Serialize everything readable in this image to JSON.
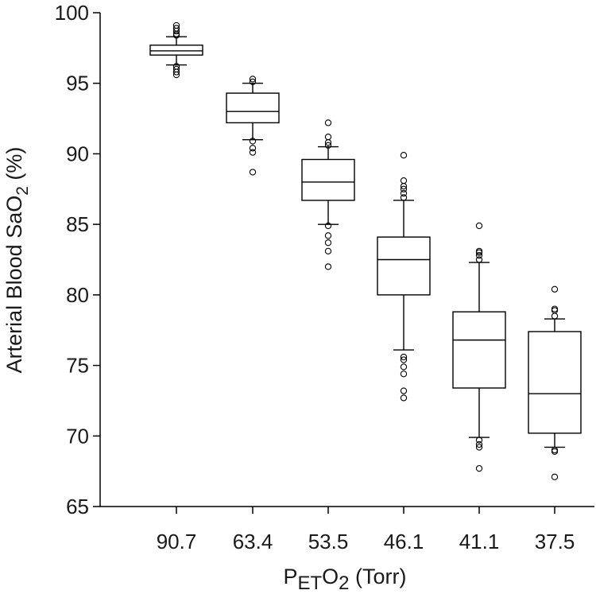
{
  "chart_data": {
    "type": "box",
    "ylabel_prefix": "Arterial Blood SaO",
    "ylabel_sub": "2",
    "ylabel_suffix": " (%)",
    "xlabel_p": "P",
    "xlabel_sub1": "ET",
    "xlabel_o": "O",
    "xlabel_sub2": "2",
    "xlabel_suffix": " (Torr)",
    "ylim": [
      65,
      100
    ],
    "yticks": [
      65,
      70,
      75,
      80,
      85,
      90,
      95,
      100
    ],
    "categories": [
      "90.7",
      "63.4",
      "53.5",
      "46.1",
      "41.1",
      "37.5"
    ],
    "boxes": [
      {
        "q1": 97.0,
        "median": 97.3,
        "q3": 97.7,
        "whisker_low": 96.3,
        "whisker_high": 98.3,
        "outliers": [
          95.6,
          95.8,
          96.0,
          96.2,
          98.4,
          98.5,
          98.7,
          98.9,
          99.1
        ]
      },
      {
        "q1": 92.2,
        "median": 93.0,
        "q3": 94.3,
        "whisker_low": 91.0,
        "whisker_high": 95.0,
        "outliers": [
          88.7,
          90.1,
          90.4,
          90.9,
          95.1,
          95.3
        ]
      },
      {
        "q1": 86.7,
        "median": 88.0,
        "q3": 89.6,
        "whisker_low": 85.0,
        "whisker_high": 90.5,
        "outliers": [
          82.0,
          83.1,
          83.7,
          84.2,
          84.9,
          90.6,
          90.8,
          91.2,
          92.2
        ]
      },
      {
        "q1": 80.0,
        "median": 82.5,
        "q3": 84.1,
        "whisker_low": 76.1,
        "whisker_high": 86.7,
        "outliers": [
          72.7,
          73.2,
          74.4,
          74.9,
          75.4,
          75.6,
          86.9,
          87.2,
          87.5,
          87.7,
          88.1,
          89.9
        ]
      },
      {
        "q1": 73.4,
        "median": 76.8,
        "q3": 78.8,
        "whisker_low": 69.9,
        "whisker_high": 82.3,
        "outliers": [
          67.7,
          69.2,
          69.4,
          69.7,
          82.5,
          82.8,
          83.0,
          83.1,
          84.9
        ]
      },
      {
        "q1": 70.2,
        "median": 73.0,
        "q3": 77.4,
        "whisker_low": 69.2,
        "whisker_high": 78.3,
        "outliers": [
          67.1,
          68.9,
          69.0,
          78.5,
          78.9,
          79.0,
          80.4
        ]
      }
    ]
  }
}
